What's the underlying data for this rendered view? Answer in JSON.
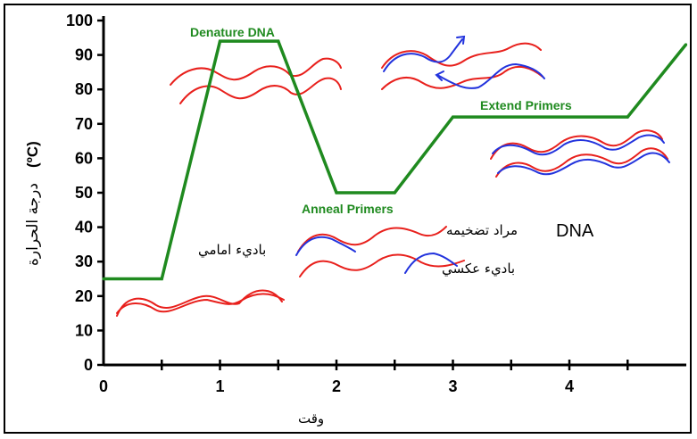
{
  "chart_data": {
    "type": "line",
    "xlabel": "وقت",
    "ylabel": "درجة الحرارة",
    "ylabel_unit": "(ºC)",
    "x_ticks": [
      "0",
      "1",
      "2",
      "3",
      "4"
    ],
    "y_ticks": [
      "0",
      "10",
      "20",
      "30",
      "40",
      "50",
      "60",
      "70",
      "80",
      "90",
      "100"
    ],
    "xlim": [
      0,
      5
    ],
    "ylim": [
      0,
      100
    ],
    "series": [
      {
        "color": "#1f8a1f",
        "x": [
          0,
          0.5,
          1.0,
          1.5,
          2.0,
          2.5,
          3.0,
          4.5,
          5.0
        ],
        "y": [
          25,
          25,
          94,
          94,
          50,
          50,
          72,
          72,
          93
        ]
      }
    ],
    "stage_labels": {
      "denature": "Denature DNA",
      "anneal": "Anneal Primers",
      "extend": "Extend Primers"
    },
    "annotations": {
      "forward_primer": "باديء امامي",
      "reverse_primer": "باديء عكسي",
      "dna_prefix": "DNA",
      "dna_target": "مراد تضخيمه"
    },
    "colors": {
      "axis": "#000000",
      "line": "#1f8a1f",
      "dna_strand": "#e8201c",
      "primer": "#2233dd"
    }
  }
}
